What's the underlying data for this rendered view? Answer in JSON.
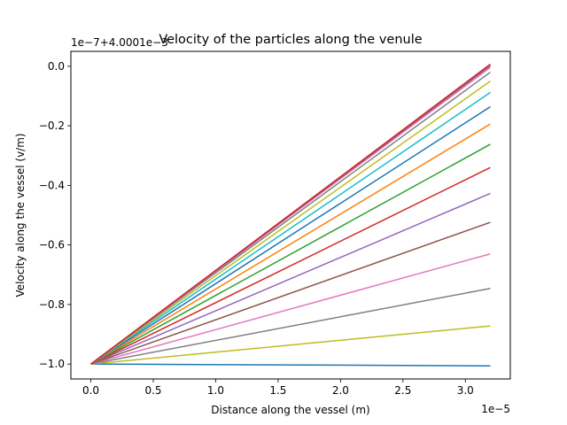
{
  "chart_data": {
    "type": "line",
    "title": "Velocity of the particles along the venule",
    "xlabel": "Distance along the vessel (m)",
    "ylabel": "Velocity along the vessel (v/m)",
    "x_scale_label": "1e−5",
    "y_offset_label": "1e−7+4.0001e−3",
    "xlim": [
      -0.16,
      3.36
    ],
    "ylim": [
      -1.05,
      0.05
    ],
    "x_ticks": [
      0.0,
      0.5,
      1.0,
      1.5,
      2.0,
      2.5,
      3.0
    ],
    "x_tick_labels": [
      "0.0",
      "0.5",
      "1.0",
      "1.5",
      "2.0",
      "2.5",
      "3.0"
    ],
    "y_ticks": [
      0.0,
      -0.2,
      -0.4,
      -0.6,
      -0.8,
      -1.0
    ],
    "y_tick_labels": [
      "0.0",
      "−0.2",
      "−0.4",
      "−0.6",
      "−0.8",
      "−1.0"
    ],
    "grid": false,
    "series": [
      {
        "color": "#1f77b4",
        "x": [
          0,
          3.2
        ],
        "y": [
          -1.0,
          -1.006
        ]
      },
      {
        "color": "#bcbd22",
        "x": [
          0,
          3.2
        ],
        "y": [
          -1.0,
          -0.872
        ]
      },
      {
        "color": "#7f7f7f",
        "x": [
          0,
          3.2
        ],
        "y": [
          -1.0,
          -0.746
        ]
      },
      {
        "color": "#e377c2",
        "x": [
          0,
          3.2
        ],
        "y": [
          -1.0,
          -0.63
        ]
      },
      {
        "color": "#8c564b",
        "x": [
          0,
          3.2
        ],
        "y": [
          -1.0,
          -0.524
        ]
      },
      {
        "color": "#9467bd",
        "x": [
          0,
          3.2
        ],
        "y": [
          -1.0,
          -0.427
        ]
      },
      {
        "color": "#d62728",
        "x": [
          0,
          3.2
        ],
        "y": [
          -1.0,
          -0.34
        ]
      },
      {
        "color": "#2ca02c",
        "x": [
          0,
          3.2
        ],
        "y": [
          -1.0,
          -0.262
        ]
      },
      {
        "color": "#ff7f0e",
        "x": [
          0,
          3.2
        ],
        "y": [
          -1.0,
          -0.194
        ]
      },
      {
        "color": "#1f77b4",
        "x": [
          0,
          3.2
        ],
        "y": [
          -1.0,
          -0.136
        ]
      },
      {
        "color": "#17becf",
        "x": [
          0,
          3.2
        ],
        "y": [
          -1.0,
          -0.088
        ]
      },
      {
        "color": "#bcbd22",
        "x": [
          0,
          3.2
        ],
        "y": [
          -1.0,
          -0.05
        ]
      },
      {
        "color": "#7f7f7f",
        "x": [
          0,
          3.2
        ],
        "y": [
          -1.0,
          -0.02
        ]
      },
      {
        "color": "#e377c2",
        "x": [
          0,
          3.2
        ],
        "y": [
          -1.0,
          -0.004
        ]
      },
      {
        "color": "#8c564b",
        "x": [
          0,
          3.2
        ],
        "y": [
          -1.0,
          0.002
        ]
      },
      {
        "color": "#9467bd",
        "x": [
          0,
          3.2
        ],
        "y": [
          -1.0,
          0.005
        ]
      },
      {
        "color": "#d62728",
        "x": [
          0,
          3.2
        ],
        "y": [
          -1.0,
          0.007
        ]
      }
    ]
  }
}
